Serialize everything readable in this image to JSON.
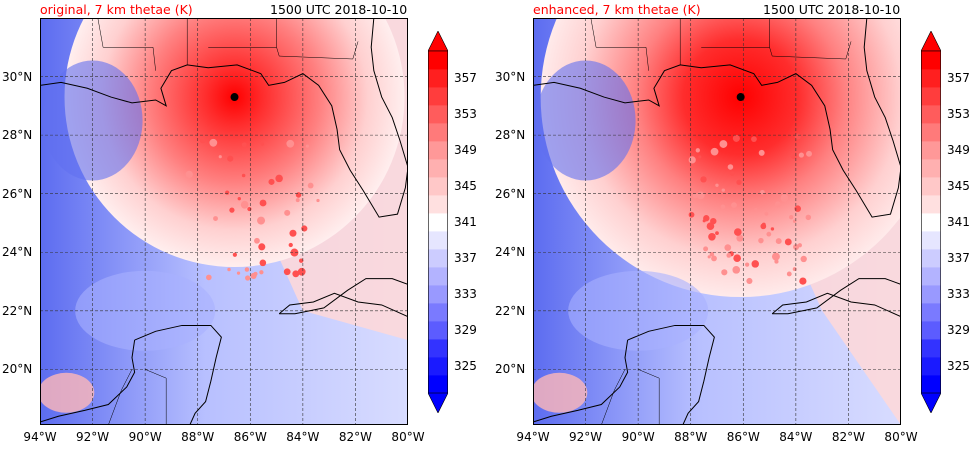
{
  "panels": [
    {
      "title": "original, 7 km thetae (K)",
      "title_color": "#ff0000",
      "time": "1500 UTC 2018-10-10",
      "storm_center": {
        "lon": -86.6,
        "lat": 29.3
      }
    },
    {
      "title": "enhanced, 7 km thetae (K)",
      "title_color": "#ff0000",
      "time": "1500 UTC 2018-10-10",
      "storm_center": {
        "lon": -86.1,
        "lat": 29.3
      }
    }
  ],
  "lon_ticks": [
    "94°W",
    "92°W",
    "90°W",
    "88°W",
    "86°W",
    "84°W",
    "82°W",
    "80°W"
  ],
  "lat_ticks": [
    "30°N",
    "28°N",
    "26°N",
    "24°N",
    "22°N",
    "20°N"
  ],
  "colorbar": {
    "labels": [
      "357",
      "353",
      "349",
      "345",
      "341",
      "337",
      "333",
      "329",
      "325"
    ],
    "colors": [
      "#0000ff",
      "#1a1aff",
      "#3333ff",
      "#5c5cff",
      "#7a7aff",
      "#9999ff",
      "#b3b3ff",
      "#ccccff",
      "#e6e6ff",
      "#ffffff",
      "#ffe0e0",
      "#ffc8c8",
      "#ffb0b0",
      "#ff9898",
      "#ff7a7a",
      "#ff5c5c",
      "#ff3d3d",
      "#ff1f1f",
      "#ff0000"
    ]
  }
}
